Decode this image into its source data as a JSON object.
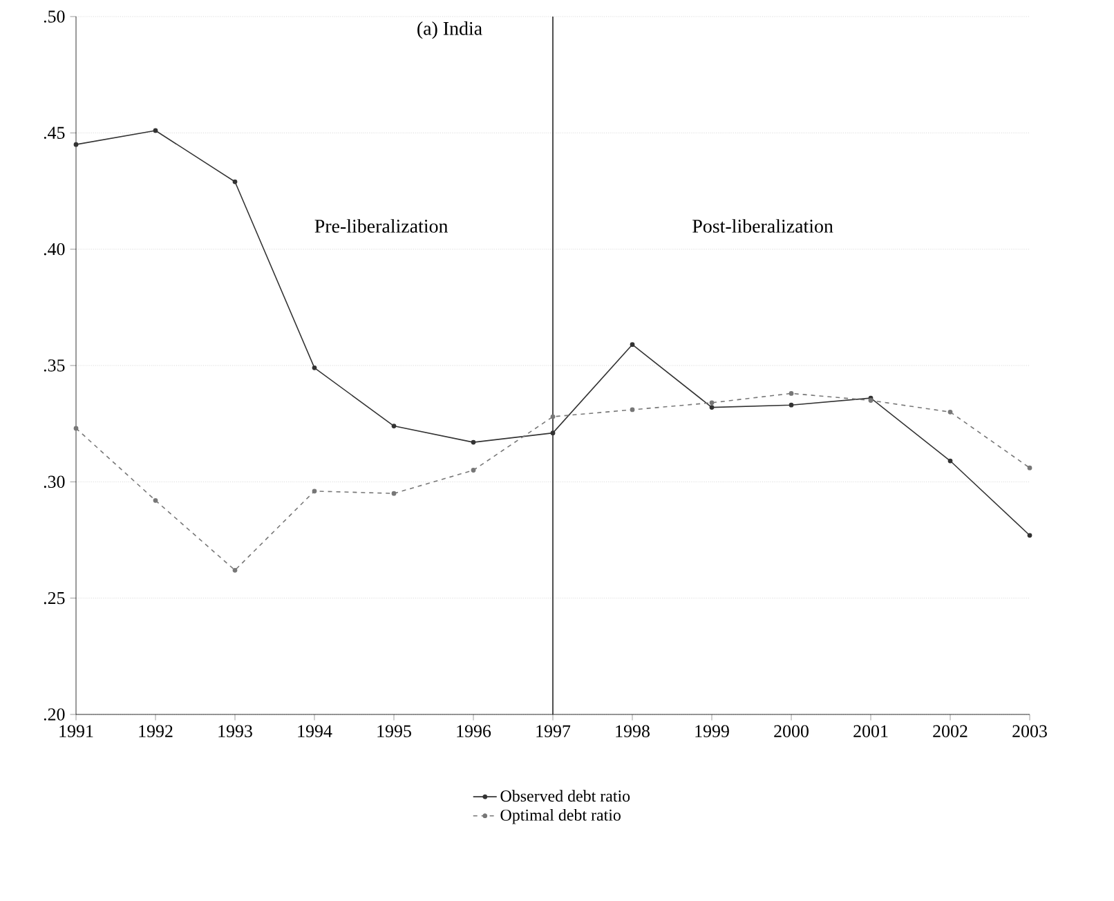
{
  "chart_data": {
    "type": "line",
    "title": "(a) India",
    "x": [
      1991,
      1992,
      1993,
      1994,
      1995,
      1996,
      1997,
      1998,
      1999,
      2000,
      2001,
      2002,
      2003
    ],
    "series": [
      {
        "name": "Observed debt ratio",
        "color": "#333333",
        "line_style": "solid",
        "values": [
          0.445,
          0.451,
          0.429,
          0.349,
          0.324,
          0.317,
          0.321,
          0.359,
          0.332,
          0.333,
          0.336,
          0.309,
          0.277
        ]
      },
      {
        "name": "Optimal debt ratio",
        "color": "#777777",
        "line_style": "dashed",
        "values": [
          0.323,
          0.292,
          0.262,
          0.296,
          0.295,
          0.305,
          0.328,
          0.331,
          0.334,
          0.338,
          0.335,
          0.33,
          0.306
        ]
      }
    ],
    "xlim": [
      1991,
      2003
    ],
    "xticks": [
      1991,
      1992,
      1993,
      1994,
      1995,
      1996,
      1997,
      1998,
      1999,
      2000,
      2001,
      2002,
      2003
    ],
    "ylim": [
      0.2,
      0.5
    ],
    "yticks": [
      {
        "value": 0.2,
        "label": ".20"
      },
      {
        "value": 0.25,
        "label": ".25"
      },
      {
        "value": 0.3,
        "label": ".30"
      },
      {
        "value": 0.35,
        "label": ".35"
      },
      {
        "value": 0.4,
        "label": ".40"
      },
      {
        "value": 0.45,
        "label": ".45"
      },
      {
        "value": 0.5,
        "label": ".50"
      }
    ],
    "ref_lines": [
      {
        "axis": "x",
        "value": 1997,
        "color": "#222222"
      }
    ],
    "annotations": [
      "Pre-liberalization",
      "Post-liberalization"
    ],
    "grid": "y",
    "legend": "bottom",
    "marker": "circle"
  }
}
